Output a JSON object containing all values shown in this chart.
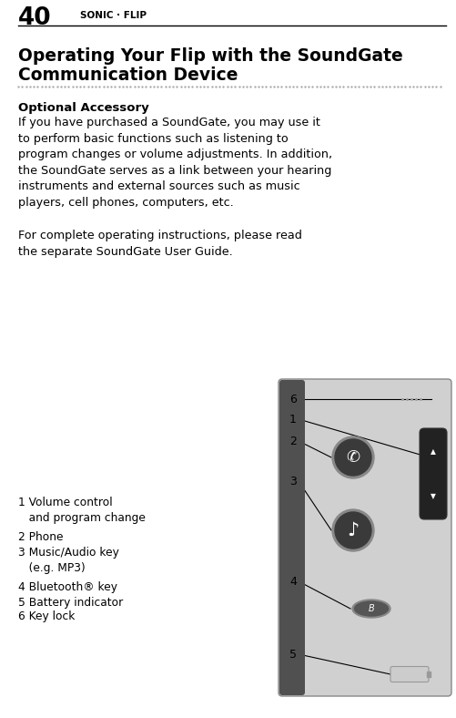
{
  "page_number": "40",
  "header_brand": "SONIC · FLIP",
  "title_line1": "Operating Your Flip with the SoundGate",
  "title_line2": "Communication Device",
  "section_heading": "Optional Accessory",
  "body_text": "If you have purchased a SoundGate, you may use it\nto perform basic functions such as listening to\nprogram changes or volume adjustments. In addition,\nthe SoundGate serves as a link between your hearing\ninstruments and external sources such as music\nplayers, cell phones, computers, etc.",
  "body_text2": "For complete operating instructions, please read\nthe separate SoundGate User Guide.",
  "label_strs": [
    "1 Volume control\n   and program change",
    "2 Phone",
    "3 Music/Audio key\n   (e.g. MP3)",
    "4 Bluetooth® key",
    "5 Battery indicator",
    "6 Key lock"
  ],
  "bg_color": "#ffffff",
  "text_color": "#000000"
}
